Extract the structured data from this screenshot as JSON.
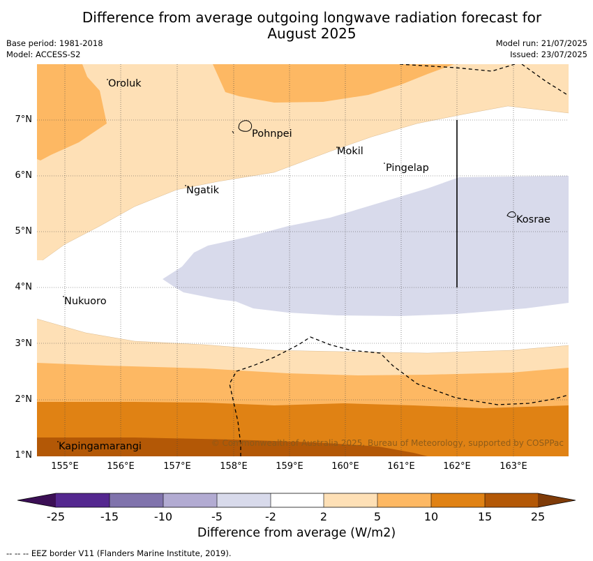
{
  "title_line1": "Difference from average outgoing longwave radiation forecast for",
  "title_line2": "August 2025",
  "base_period": "Base period: 1981-2018",
  "model": "Model: ACCESS-S2",
  "model_run": "Model run: 21/07/2025",
  "issued": "Issued: 23/07/2025",
  "lat_labels": [
    "7°N",
    "6°N",
    "5°N",
    "4°N",
    "3°N",
    "2°N",
    "1°N"
  ],
  "lon_labels": [
    "155°E",
    "156°E",
    "157°E",
    "158°E",
    "159°E",
    "160°E",
    "161°E",
    "162°E",
    "163°E"
  ],
  "places": {
    "oroluk": "Oroluk",
    "pohnpei": "Pohnpei",
    "mokil": "Mokil",
    "pingelap": "Pingelap",
    "ngatik": "Ngatik",
    "kosrae": "Kosrae",
    "nukuoro": "Nukuoro",
    "kapingamarangi": "Kapingamarangi"
  },
  "copyright": "© Commonwealth of Australia 2025, Bureau of Meteorology, supported by COSPPac",
  "colorbar": {
    "title": "Difference from average (W/m2)",
    "ticks": [
      "-25",
      "-15",
      "-10",
      "-5",
      "-2",
      "2",
      "5",
      "10",
      "15",
      "25"
    ],
    "colors": {
      "lt_neg25": "#3b0f55",
      "neg25_neg15": "#54278f",
      "neg15_neg10": "#8073ac",
      "neg10_neg5": "#b2abd2",
      "neg5_neg2": "#d8daeb",
      "neg2_2": "#ffffff",
      "2_5": "#fee0b6",
      "5_10": "#fdb863",
      "10_15": "#e08214",
      "15_25": "#b35806",
      "gt_25": "#7f3b08"
    }
  },
  "footnote": "--  --  -- EEZ border V11 (Flanders Marine Institute, 2019)."
}
